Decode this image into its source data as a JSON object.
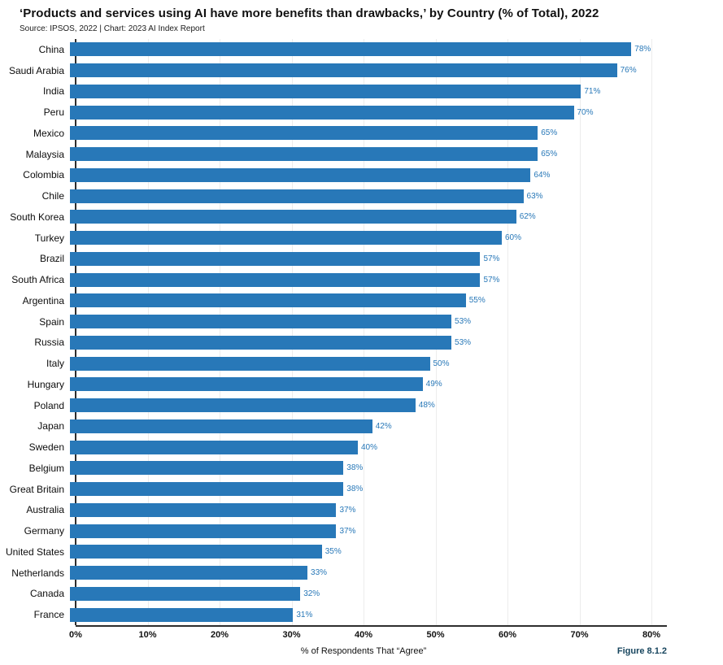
{
  "header": {
    "title": "‘Products and services using AI have more benefits than drawbacks,’ by Country (% of Total), 2022",
    "source": "Source: IPSOS, 2022 | Chart: 2023 AI Index Report"
  },
  "chart_data": {
    "type": "bar",
    "orientation": "horizontal",
    "title": "‘Products and services using AI have more benefits than drawbacks,’ by Country (% of Total), 2022",
    "categories": [
      "China",
      "Saudi Arabia",
      "India",
      "Peru",
      "Mexico",
      "Malaysia",
      "Colombia",
      "Chile",
      "South Korea",
      "Turkey",
      "Brazil",
      "South Africa",
      "Argentina",
      "Spain",
      "Russia",
      "Italy",
      "Hungary",
      "Poland",
      "Japan",
      "Sweden",
      "Belgium",
      "Great Britain",
      "Australia",
      "Germany",
      "United States",
      "Netherlands",
      "Canada",
      "France"
    ],
    "values": [
      78,
      76,
      71,
      70,
      65,
      65,
      64,
      63,
      62,
      60,
      57,
      57,
      55,
      53,
      53,
      50,
      49,
      48,
      42,
      40,
      38,
      38,
      37,
      37,
      35,
      33,
      32,
      31
    ],
    "value_suffix": "%",
    "xlabel": "% of Respondents That “Agree”",
    "xlim": [
      0,
      80
    ],
    "xticks": [
      "0%",
      "10%",
      "20%",
      "30%",
      "40%",
      "50%",
      "60%",
      "70%",
      "80%"
    ],
    "grid": "vertical",
    "legend": "none",
    "bar_color": "#2878B8",
    "value_label_color": "#2878B8",
    "axis_color": "#2e2e2e",
    "gridline_color": "#ececec"
  },
  "footer": {
    "figure_label": "Figure 8.1.2",
    "figure_label_color": "#17455E"
  }
}
